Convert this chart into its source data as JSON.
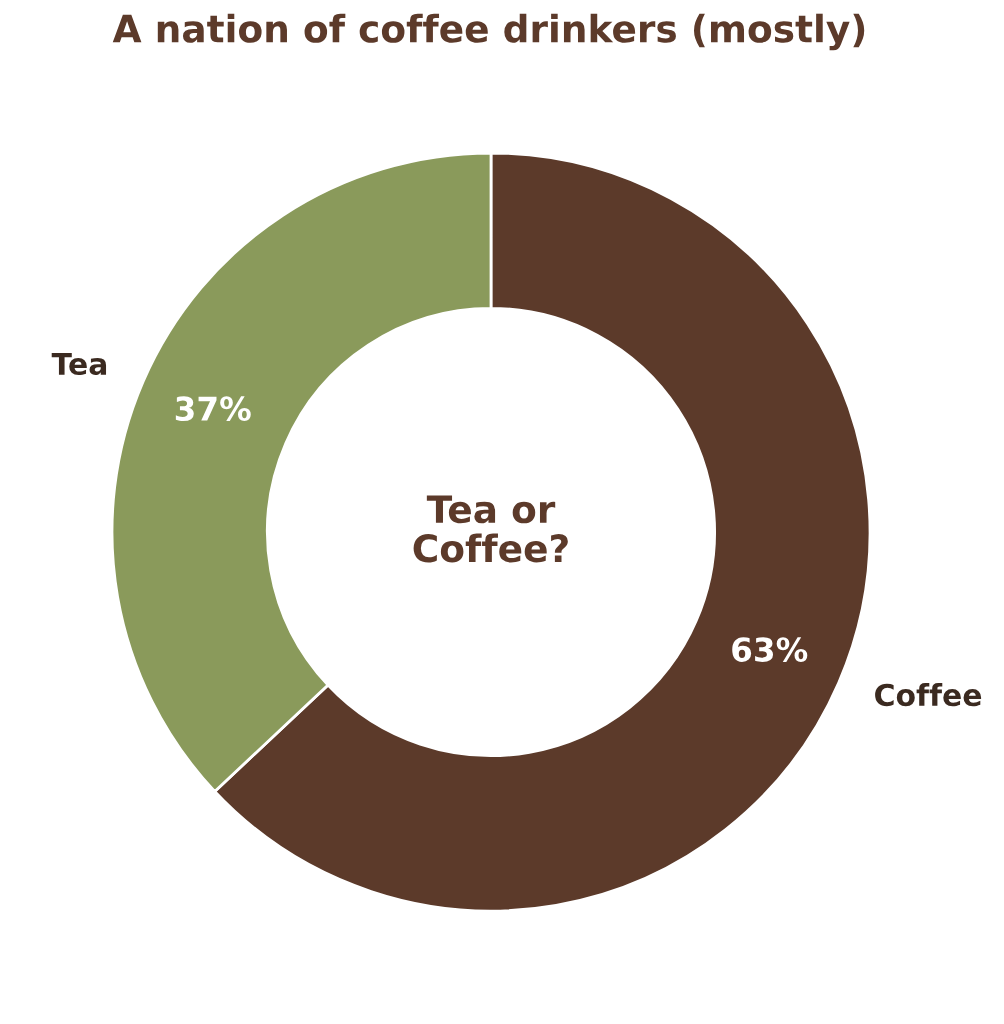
{
  "chart_data": {
    "type": "donut",
    "title": "A nation of coffee drinkers (mostly)",
    "categories": [
      "Coffee",
      "Tea"
    ],
    "values": [
      63,
      37
    ],
    "colors": [
      "#5c3a2a",
      "#8a9a5b"
    ],
    "value_labels": [
      "63%",
      "37%"
    ],
    "annotations": [
      "Tea or\nCoffee?"
    ]
  }
}
